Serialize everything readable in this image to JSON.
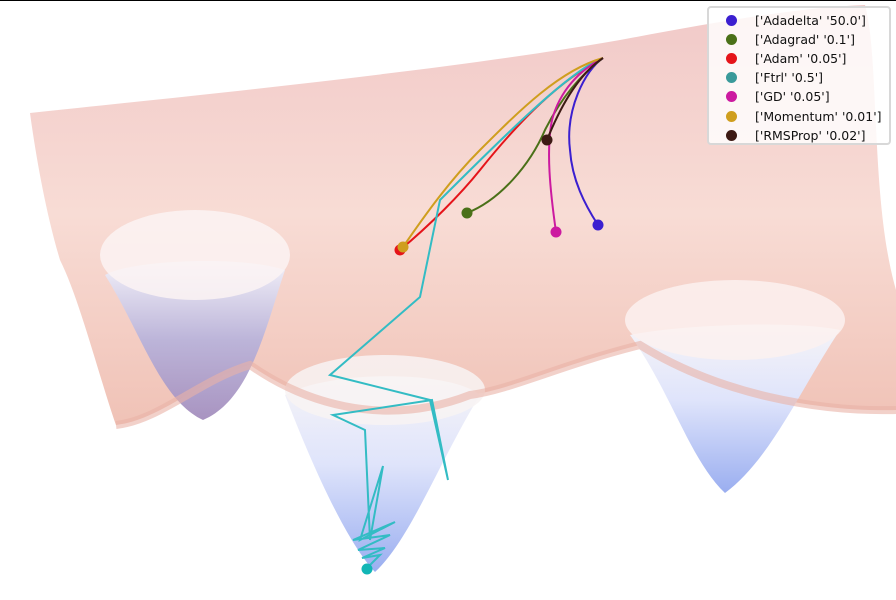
{
  "chart_data": {
    "type": "surface-3d",
    "title": "",
    "series": [
      {
        "name": "['Adadelta' '50.0']",
        "color": "#3b1fd0"
      },
      {
        "name": "['Adagrad' '0.1']",
        "color": "#4a7018"
      },
      {
        "name": "['Adam' '0.05']",
        "color": "#e5141a"
      },
      {
        "name": "['Ftrl' '0.5']",
        "color": "#3a9a9a"
      },
      {
        "name": "['GD' '0.05']",
        "color": "#cc1aa0"
      },
      {
        "name": "['Momentum' '0.01']",
        "color": "#cf9e1e"
      },
      {
        "name": "['RMSProp' '0.02']",
        "color": "#3d1a14"
      }
    ],
    "legend_position": "top-right",
    "grid": false,
    "axes_visible": false
  }
}
